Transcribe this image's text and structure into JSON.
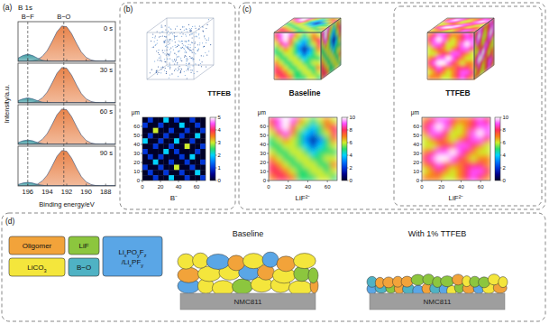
{
  "panel_a": {
    "label": "(a)",
    "x_label": "Binding energy/eV",
    "y_label": "Intensity/a.u."
  },
  "chart_data": [
    {
      "type": "area",
      "title": "B 1s",
      "subtitle": "0 s",
      "x": [
        197,
        196.5,
        196,
        195.5,
        195,
        194.5,
        194,
        193.5,
        193,
        192.5,
        192,
        191.5,
        191,
        190.5,
        190,
        189.5,
        189,
        188.5,
        188,
        187.5,
        187
      ],
      "xlim": [
        197,
        187
      ],
      "xticks": [
        196,
        194,
        192,
        190,
        188
      ],
      "ylim": [
        0,
        1.1
      ],
      "tick_labels": false,
      "series": [
        {
          "color": "#e8834a",
          "values": [
            0,
            0,
            0,
            0.02,
            0.05,
            0.14,
            0.3,
            0.55,
            0.82,
            0.98,
            0.96,
            0.77,
            0.5,
            0.26,
            0.11,
            0.04,
            0.01,
            0,
            0,
            0,
            0
          ]
        },
        {
          "color": "#3c9aa0",
          "values": [
            0.09,
            0.16,
            0.2,
            0.16,
            0.09,
            0.03,
            0.01,
            0,
            0,
            0,
            0,
            0,
            0,
            0,
            0,
            0,
            0,
            0,
            0,
            0,
            0
          ]
        }
      ],
      "annotations": [
        {
          "text": "B−F",
          "x": 196
        },
        {
          "text": "B−O",
          "x": 192.3
        }
      ]
    },
    {
      "type": "area",
      "subtitle": "30 s",
      "x": [
        197,
        196.5,
        196,
        195.5,
        195,
        194.5,
        194,
        193.5,
        193,
        192.5,
        192,
        191.5,
        191,
        190.5,
        190,
        189.5,
        189,
        188.5,
        188,
        187.5,
        187
      ],
      "xlim": [
        197,
        187
      ],
      "xticks": [
        196,
        194,
        192,
        190,
        188
      ],
      "ylim": [
        0,
        1.1
      ],
      "tick_labels": false,
      "series": [
        {
          "color": "#e8834a",
          "values": [
            0,
            0,
            0,
            0.02,
            0.05,
            0.14,
            0.3,
            0.55,
            0.82,
            0.98,
            0.96,
            0.77,
            0.5,
            0.26,
            0.11,
            0.04,
            0.01,
            0,
            0,
            0,
            0
          ]
        },
        {
          "color": "#3c9aa0",
          "values": [
            0.06,
            0.11,
            0.14,
            0.11,
            0.06,
            0.02,
            0.01,
            0,
            0,
            0,
            0,
            0,
            0,
            0,
            0,
            0,
            0,
            0,
            0,
            0,
            0
          ]
        }
      ]
    },
    {
      "type": "area",
      "subtitle": "60 s",
      "x": [
        197,
        196.5,
        196,
        195.5,
        195,
        194.5,
        194,
        193.5,
        193,
        192.5,
        192,
        191.5,
        191,
        190.5,
        190,
        189.5,
        189,
        188.5,
        188,
        187.5,
        187
      ],
      "xlim": [
        197,
        187
      ],
      "xticks": [
        196,
        194,
        192,
        190,
        188
      ],
      "ylim": [
        0,
        1.1
      ],
      "tick_labels": false,
      "series": [
        {
          "color": "#e8834a",
          "values": [
            0,
            0,
            0,
            0.02,
            0.05,
            0.14,
            0.3,
            0.55,
            0.82,
            0.98,
            0.96,
            0.77,
            0.5,
            0.26,
            0.11,
            0.04,
            0.01,
            0,
            0,
            0,
            0
          ]
        },
        {
          "color": "#3c9aa0",
          "values": [
            0.05,
            0.1,
            0.12,
            0.1,
            0.05,
            0.02,
            0,
            0,
            0,
            0,
            0,
            0,
            0,
            0,
            0,
            0,
            0,
            0,
            0,
            0,
            0
          ]
        }
      ]
    },
    {
      "type": "area",
      "subtitle": "90 s",
      "x": [
        197,
        196.5,
        196,
        195.5,
        195,
        194.5,
        194,
        193.5,
        193,
        192.5,
        192,
        191.5,
        191,
        190.5,
        190,
        189.5,
        189,
        188.5,
        188,
        187.5,
        187
      ],
      "xlim": [
        197,
        187
      ],
      "xticks": [
        196,
        194,
        192,
        190,
        188
      ],
      "ylim": [
        0,
        1.1
      ],
      "tick_labels": "x",
      "series": [
        {
          "color": "#e8834a",
          "values": [
            0,
            0,
            0,
            0.02,
            0.05,
            0.14,
            0.3,
            0.55,
            0.82,
            0.98,
            0.96,
            0.77,
            0.5,
            0.26,
            0.11,
            0.04,
            0.01,
            0,
            0,
            0,
            0
          ]
        },
        {
          "color": "#3c9aa0",
          "values": [
            0.04,
            0.08,
            0.1,
            0.08,
            0.04,
            0.02,
            0,
            0,
            0,
            0,
            0,
            0,
            0,
            0,
            0,
            0,
            0,
            0,
            0,
            0,
            0
          ]
        }
      ]
    }
  ],
  "panel_b": {
    "label": "(b)",
    "cube_label": "TTFEB",
    "map": {
      "title": "B⁻",
      "axis_label": "μm",
      "xlim": [
        0,
        70
      ],
      "ylim": [
        0,
        70
      ],
      "xticks": [
        0,
        20,
        40,
        60
      ],
      "yticks": [
        0,
        10,
        20,
        30,
        40,
        50,
        60
      ],
      "cells": [
        [
          0,
          1,
          0,
          0,
          2,
          0,
          1,
          0,
          0,
          1,
          0,
          0
        ],
        [
          1,
          0,
          0,
          1,
          0,
          0,
          0,
          2,
          0,
          0,
          1,
          0
        ],
        [
          0,
          0,
          3,
          0,
          0,
          1,
          0,
          0,
          1,
          0,
          0,
          1
        ],
        [
          0,
          1,
          0,
          0,
          1,
          0,
          0,
          1,
          0,
          0,
          2,
          0
        ],
        [
          2,
          0,
          0,
          1,
          0,
          0,
          2,
          0,
          0,
          1,
          0,
          0
        ],
        [
          0,
          0,
          1,
          0,
          0,
          1,
          0,
          0,
          3,
          0,
          0,
          1
        ],
        [
          1,
          0,
          0,
          0,
          2,
          0,
          1,
          0,
          0,
          0,
          1,
          0
        ],
        [
          0,
          1,
          0,
          1,
          0,
          0,
          0,
          1,
          0,
          2,
          0,
          0
        ],
        [
          0,
          0,
          2,
          0,
          0,
          1,
          0,
          0,
          1,
          0,
          0,
          1
        ],
        [
          1,
          0,
          0,
          1,
          0,
          0,
          3,
          0,
          0,
          1,
          0,
          0
        ],
        [
          0,
          1,
          0,
          0,
          1,
          0,
          0,
          1,
          0,
          0,
          2,
          0
        ],
        [
          0,
          0,
          1,
          0,
          0,
          2,
          0,
          0,
          1,
          0,
          0,
          1
        ]
      ],
      "colorbar": {
        "range": [
          0,
          5
        ],
        "ticks": [
          0,
          1,
          2,
          3,
          4,
          5
        ]
      }
    }
  },
  "panel_c": {
    "label": "(c)",
    "columns": [
      {
        "title": "Baseline",
        "map": {
          "title": "LiF²⁻",
          "axis_label": "μm",
          "xlim": [
            0,
            70
          ],
          "ylim": [
            0,
            70
          ],
          "xticks": [
            0,
            20,
            40,
            60
          ],
          "yticks": [
            0,
            10,
            20,
            30,
            40,
            50,
            60
          ],
          "cells": [
            [
              8,
              9,
              10,
              9,
              7,
              6,
              5,
              6,
              7,
              6
            ],
            [
              7,
              9,
              10,
              8,
              6,
              5,
              4,
              5,
              7,
              8
            ],
            [
              6,
              8,
              9,
              7,
              5,
              4,
              3,
              5,
              6,
              8
            ],
            [
              5,
              6,
              7,
              6,
              5,
              3,
              1,
              3,
              5,
              7
            ],
            [
              5,
              5,
              6,
              6,
              5,
              4,
              2,
              4,
              5,
              6
            ],
            [
              6,
              5,
              5,
              6,
              6,
              5,
              4,
              5,
              5,
              5
            ],
            [
              7,
              6,
              5,
              5,
              6,
              6,
              5,
              5,
              6,
              6
            ],
            [
              8,
              7,
              6,
              5,
              5,
              6,
              6,
              5,
              5,
              7
            ],
            [
              8,
              8,
              7,
              6,
              5,
              5,
              6,
              6,
              5,
              6
            ],
            [
              7,
              8,
              8,
              7,
              5,
              5,
              5,
              6,
              6,
              5
            ]
          ],
          "colorbar": {
            "range": [
              0,
              10
            ],
            "ticks": [
              0,
              2,
              4,
              6,
              8,
              10
            ]
          }
        }
      },
      {
        "title": "TTFEB",
        "map": {
          "title": "LiF²⁻",
          "axis_label": "μm",
          "xlim": [
            0,
            70
          ],
          "ylim": [
            0,
            70
          ],
          "xticks": [
            0,
            20,
            40,
            60
          ],
          "yticks": [
            0,
            10,
            20,
            30,
            40,
            50,
            60
          ],
          "cells": [
            [
              7,
              8,
              9,
              9,
              8,
              7,
              7,
              8,
              9,
              8
            ],
            [
              8,
              9,
              10,
              9,
              7,
              6,
              7,
              8,
              9,
              9
            ],
            [
              7,
              9,
              9,
              8,
              6,
              6,
              7,
              9,
              10,
              9
            ],
            [
              6,
              7,
              8,
              7,
              6,
              7,
              8,
              9,
              9,
              8
            ],
            [
              6,
              6,
              7,
              8,
              8,
              9,
              9,
              8,
              7,
              6
            ],
            [
              7,
              8,
              9,
              9,
              10,
              9,
              8,
              7,
              6,
              6
            ],
            [
              8,
              9,
              10,
              10,
              9,
              8,
              7,
              6,
              7,
              7
            ],
            [
              7,
              8,
              9,
              8,
              7,
              7,
              8,
              8,
              8,
              7
            ],
            [
              6,
              7,
              8,
              7,
              6,
              7,
              8,
              9,
              9,
              8
            ],
            [
              7,
              7,
              7,
              6,
              6,
              7,
              8,
              9,
              8,
              7
            ]
          ],
          "colorbar": {
            "range": [
              0,
              10
            ],
            "ticks": [
              0,
              2,
              4,
              6,
              8,
              10
            ]
          }
        }
      }
    ]
  },
  "panel_d": {
    "label": "(d)",
    "legend": [
      {
        "text": "Oligomer",
        "color": "#f2a33a"
      },
      {
        "text": "LiF",
        "color": "#8cc63e"
      },
      {
        "text": "LixPOyFz/LixPFy",
        "color": "#5aa6e6"
      },
      {
        "text": "LiCO3",
        "color": "#f4e63c"
      },
      {
        "text": "B−O",
        "color": "#4fb2c4"
      }
    ],
    "schematics": [
      {
        "title": "Baseline",
        "substrate": "NMC811"
      },
      {
        "title": "With 1% TTFEB",
        "substrate": "NMC811"
      }
    ]
  }
}
